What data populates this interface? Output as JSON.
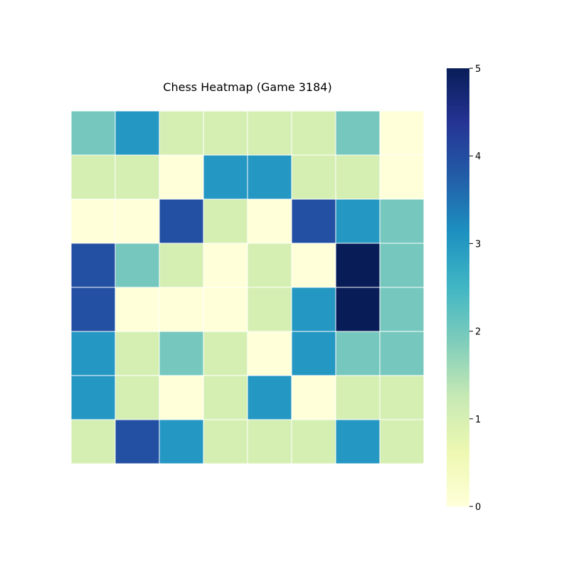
{
  "chart_data": {
    "type": "heatmap",
    "title": "Chess Heatmap (Game 3184)",
    "xlabel": "",
    "ylabel": "",
    "rows": 8,
    "cols": 8,
    "values": [
      [
        2,
        3,
        1,
        1,
        1,
        1,
        2,
        0
      ],
      [
        1,
        1,
        0,
        3,
        3,
        1,
        1,
        0
      ],
      [
        0,
        0,
        4,
        1,
        0,
        4,
        3,
        2
      ],
      [
        4,
        2,
        1,
        0,
        1,
        0,
        5,
        2
      ],
      [
        4,
        0,
        0,
        0,
        1,
        3,
        5,
        2
      ],
      [
        3,
        1,
        2,
        1,
        0,
        3,
        2,
        2
      ],
      [
        3,
        1,
        0,
        1,
        3,
        0,
        1,
        1
      ],
      [
        1,
        4,
        3,
        1,
        1,
        1,
        3,
        1
      ]
    ],
    "vmin": 0,
    "vmax": 5,
    "colormap": "YlGnBu",
    "colors": {
      "0": "#ffffd9",
      "1": "#d5efb3",
      "2": "#76c8bf",
      "3": "#2597c3",
      "4": "#2350a2",
      "5": "#081d58"
    },
    "cell_border_color": "#ffffff",
    "colorbar": {
      "ticks": [
        "0",
        "1",
        "2",
        "3",
        "4",
        "5"
      ],
      "gradient_stops": [
        "#ffffd9",
        "#edf8b1",
        "#c7e9b4",
        "#7fcdbb",
        "#41b6c4",
        "#1d91c0",
        "#225ea8",
        "#253494",
        "#081d58"
      ]
    },
    "grid": false,
    "axes_visible": false
  }
}
